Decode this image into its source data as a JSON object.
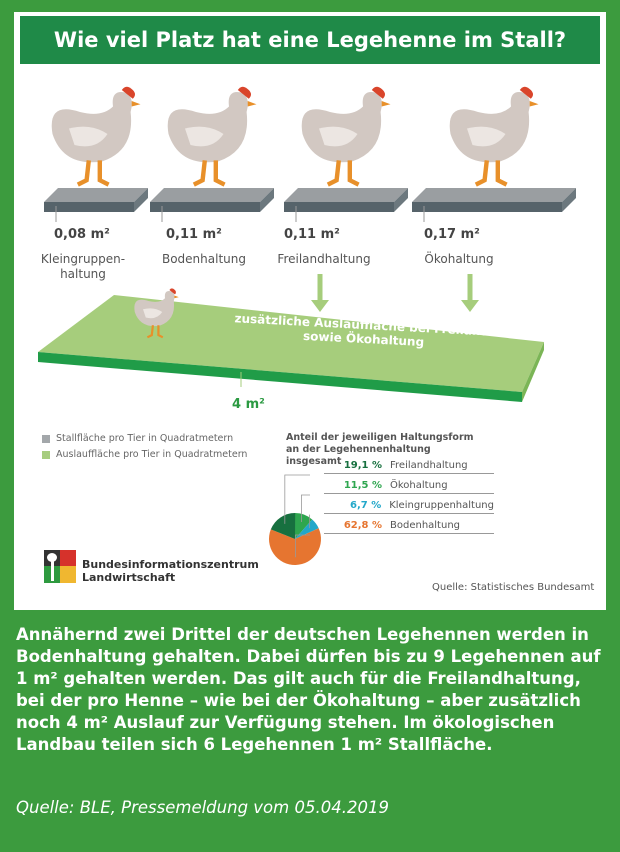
{
  "title": "Wie viel Platz hat eine Legehenne im Stall?",
  "housing": [
    {
      "area": "0,08 m²",
      "label": "Kleingruppen-\nhaltung"
    },
    {
      "area": "0,11 m²",
      "label": "Bodenhaltung"
    },
    {
      "area": "0,11 m²",
      "label": "Freilandhaltung"
    },
    {
      "area": "0,17 m²",
      "label": "Ökohaltung"
    }
  ],
  "outdoor": {
    "text1": "zusätzliche Auslauffläche bei Freiland-",
    "text2": "sowie Ökohaltung",
    "area": "4 m²"
  },
  "legend": [
    {
      "label": "Stallfläche pro Tier in Quadratmetern",
      "color": "#a3a7aa"
    },
    {
      "label": "Auslauffläche pro Tier in Quadratmetern",
      "color": "#a7cd7f"
    }
  ],
  "chart_data": {
    "type": "pie",
    "title": "Anteil der jeweiligen Haltungsform an der Legehennenhaltung insgesamt",
    "slices": [
      {
        "name": "Freilandhaltung",
        "value": 19.1,
        "label": "19,1 %",
        "color": "#17703f"
      },
      {
        "name": "Ökohaltung",
        "value": 11.5,
        "label": "11,5 %",
        "color": "#2ea64f"
      },
      {
        "name": "Kleingruppenhaltung",
        "value": 6.7,
        "label": "6,7 %",
        "color": "#22a7c9"
      },
      {
        "name": "Bodenhaltung",
        "value": 62.8,
        "label": "62,8 %",
        "color": "#e67530"
      }
    ]
  },
  "logo": {
    "line1": "Bundesinformationszentrum",
    "line2": "Landwirtschaft"
  },
  "source_chart": "Quelle: Statistisches Bundesamt",
  "body_text": "Annähernd zwei Drittel der deutschen Legehennen werden in Bodenhaltung gehalten. Dabei dürfen bis zu 9 Legehennen auf 1 m² gehalten werden. Das gilt auch für die Freilandhaltung, bei der pro Henne – wie bei der Ökohaltung – aber zusätzlich noch 4 m² Auslauf zur Verfügung stehen. Im ökologischen Landbau teilen sich 6 Legehennen 1 m² Stallfläche.",
  "source": "Quelle: BLE, Pressemeldung vom 05.04.2019"
}
